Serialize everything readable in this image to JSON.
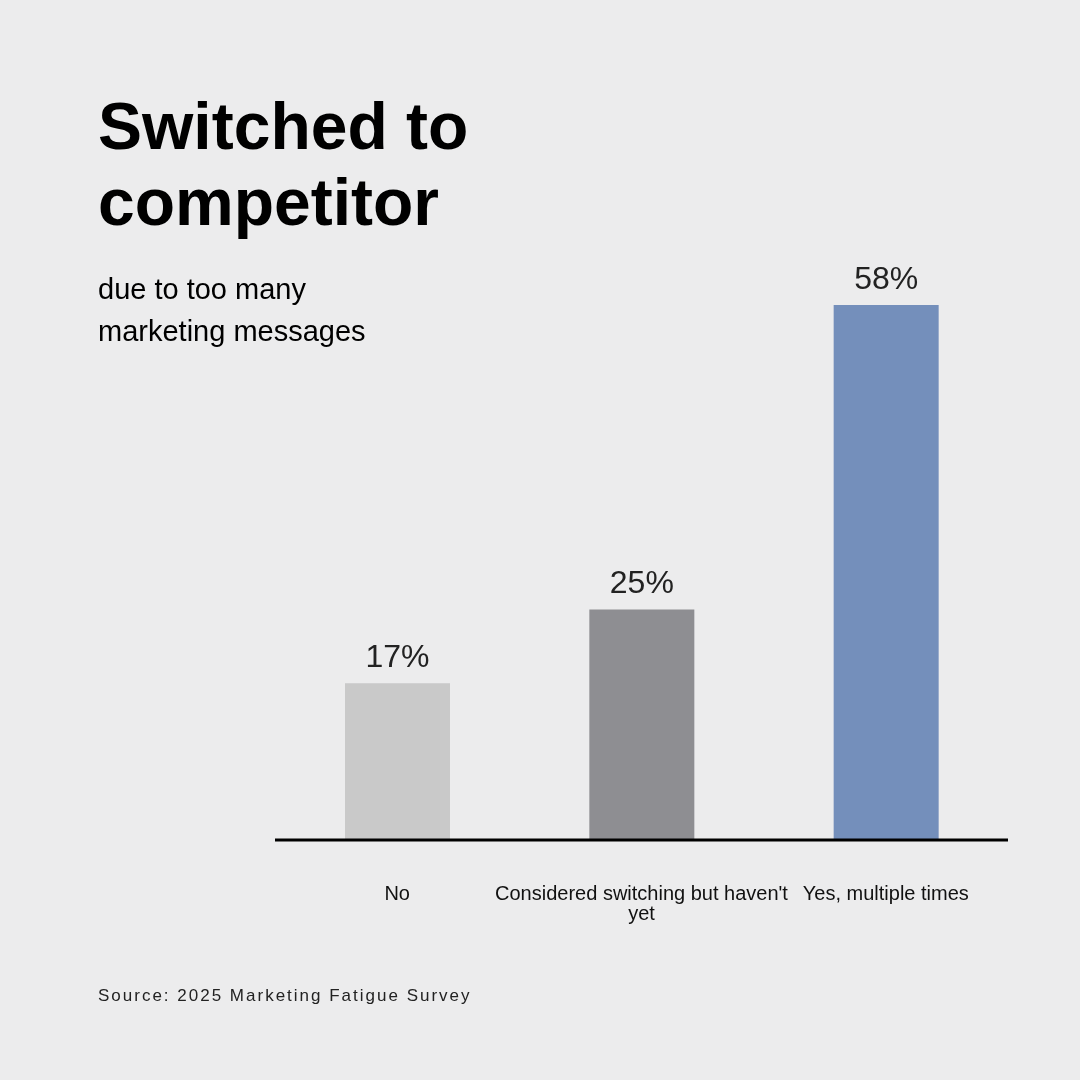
{
  "chart_data": {
    "type": "bar",
    "title": "Switched to competitor",
    "subtitle": "due to too many marketing messages",
    "categories": [
      "No",
      "Considered switching but haven't yet",
      "Yes, multiple times"
    ],
    "values": [
      17,
      25,
      58
    ],
    "colors": [
      "#c9c9c9",
      "#8e8e92",
      "#748fbb"
    ],
    "value_labels": [
      "17%",
      "25%",
      "58%"
    ],
    "annotations": [
      "Source: 2025 Marketing Fatigue Survey"
    ]
  }
}
